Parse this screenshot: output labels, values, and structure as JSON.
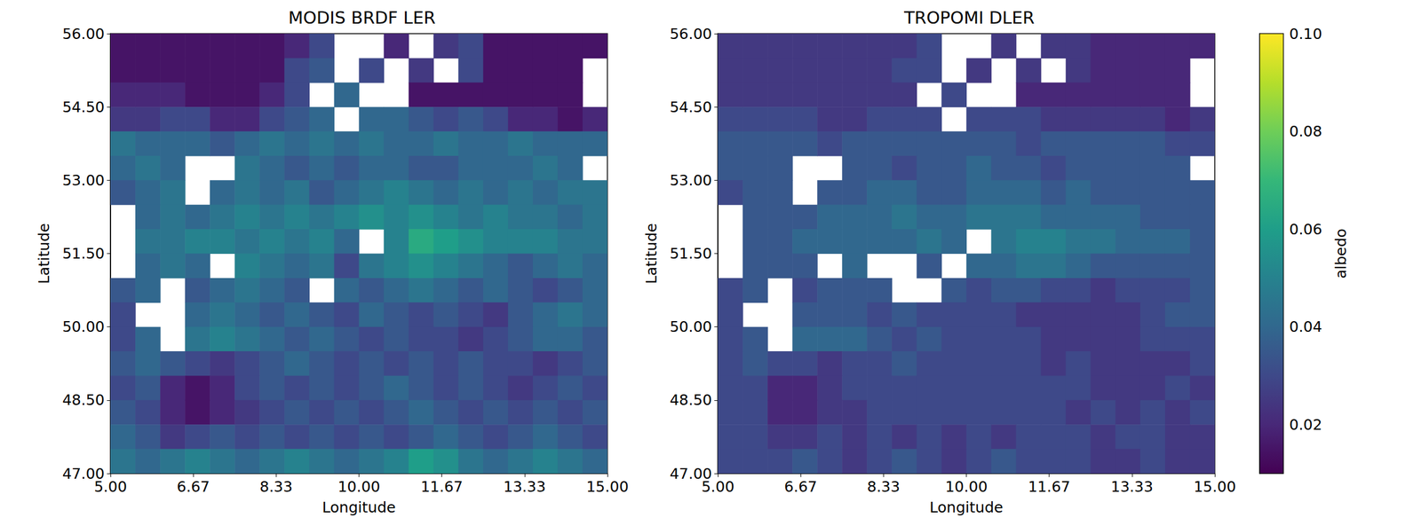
{
  "chart_data": {
    "type": "heatmap",
    "x": [
      5.25,
      5.75,
      6.25,
      6.75,
      7.25,
      7.75,
      8.25,
      8.75,
      9.25,
      9.75,
      10.25,
      10.75,
      11.25,
      11.75,
      12.25,
      12.75,
      13.25,
      13.75,
      14.25,
      14.75
    ],
    "y": [
      55.75,
      55.25,
      54.75,
      54.25,
      53.75,
      53.25,
      52.75,
      52.25,
      51.75,
      51.25,
      50.75,
      50.25,
      49.75,
      49.25,
      48.75,
      48.25,
      47.75,
      47.25
    ],
    "color_range": [
      0.01,
      0.1
    ],
    "colorbar_ticks": [
      0.02,
      0.04,
      0.06,
      0.08,
      {
        "value": 0.1,
        "label": "0.10"
      }
    ],
    "colorbar_label": "albedo",
    "panels": [
      {
        "title": "MODIS BRDF LER",
        "xlabel": "Longitude",
        "ylabel": "Latitude",
        "xlim": [
          5,
          15
        ],
        "ylim": [
          47,
          56
        ],
        "xticks": [
          {
            "value": 5,
            "label": "5.00"
          },
          {
            "value": 6.667,
            "label": "6.67"
          },
          {
            "value": 8.333,
            "label": "8.33"
          },
          {
            "value": 10,
            "label": "10.00"
          },
          {
            "value": 11.667,
            "label": "11.67"
          },
          {
            "value": 13.333,
            "label": "13.33"
          },
          {
            "value": 15,
            "label": "15.00"
          }
        ],
        "yticks": [
          {
            "value": 47,
            "label": "47.00"
          },
          {
            "value": 48.5,
            "label": "48.50"
          },
          {
            "value": 50,
            "label": "50.00"
          },
          {
            "value": 51.5,
            "label": "51.50"
          },
          {
            "value": 53,
            "label": "53.00"
          },
          {
            "value": 54.5,
            "label": "54.50"
          },
          {
            "value": 56,
            "label": "56.00"
          }
        ],
        "cells": [
          [
            0.015,
            0.015,
            0.015,
            0.015,
            0.015,
            0.015,
            0.015,
            0.02,
            0.03,
            null,
            null,
            0.02,
            null,
            0.025,
            0.03,
            0.015,
            0.015,
            0.015,
            0.015,
            0.015
          ],
          [
            0.015,
            0.015,
            0.015,
            0.015,
            0.015,
            0.015,
            0.015,
            0.03,
            0.035,
            null,
            0.03,
            null,
            0.025,
            null,
            0.03,
            0.015,
            0.015,
            0.015,
            0.015,
            null
          ],
          [
            0.02,
            0.02,
            0.02,
            0.015,
            0.015,
            0.015,
            0.02,
            0.03,
            null,
            0.04,
            null,
            null,
            0.015,
            0.015,
            0.015,
            0.015,
            0.015,
            0.015,
            0.015,
            null
          ],
          [
            0.025,
            0.025,
            0.03,
            0.03,
            0.02,
            0.02,
            0.03,
            0.035,
            0.04,
            null,
            0.04,
            0.04,
            0.035,
            0.03,
            0.035,
            0.03,
            0.02,
            0.02,
            0.015,
            0.02
          ],
          [
            0.045,
            0.04,
            0.04,
            0.04,
            0.035,
            0.04,
            0.045,
            0.04,
            0.045,
            0.04,
            0.045,
            0.04,
            0.04,
            0.045,
            0.04,
            0.04,
            0.045,
            0.04,
            0.04,
            0.04
          ],
          [
            0.04,
            0.045,
            0.04,
            null,
            null,
            0.045,
            0.04,
            0.035,
            0.04,
            0.035,
            0.04,
            0.04,
            0.035,
            0.035,
            0.04,
            0.04,
            0.04,
            0.045,
            0.04,
            null
          ],
          [
            0.035,
            0.04,
            0.045,
            null,
            0.04,
            0.045,
            0.04,
            0.045,
            0.035,
            0.04,
            0.045,
            0.05,
            0.045,
            0.04,
            0.045,
            0.04,
            0.045,
            0.04,
            0.045,
            0.045
          ],
          [
            null,
            0.04,
            0.045,
            0.04,
            0.045,
            0.05,
            0.045,
            0.05,
            0.045,
            0.05,
            0.055,
            0.05,
            0.055,
            0.05,
            0.045,
            0.05,
            0.045,
            0.045,
            0.04,
            0.045
          ],
          [
            null,
            0.045,
            0.045,
            0.05,
            0.05,
            0.045,
            0.05,
            0.045,
            0.05,
            0.04,
            null,
            0.05,
            0.065,
            0.06,
            0.055,
            0.05,
            0.05,
            0.05,
            0.045,
            0.045
          ],
          [
            null,
            0.04,
            0.045,
            0.04,
            null,
            0.05,
            0.045,
            0.04,
            0.045,
            0.03,
            0.045,
            0.05,
            0.055,
            0.05,
            0.045,
            0.04,
            0.035,
            0.04,
            0.045,
            0.04
          ],
          [
            0.035,
            0.04,
            null,
            0.035,
            0.04,
            0.045,
            0.04,
            0.035,
            null,
            0.04,
            0.035,
            0.04,
            0.045,
            0.04,
            0.035,
            0.04,
            0.035,
            0.03,
            0.035,
            0.04
          ],
          [
            0.03,
            null,
            null,
            0.04,
            0.045,
            0.04,
            0.035,
            0.04,
            0.035,
            0.03,
            0.04,
            0.035,
            0.03,
            0.035,
            0.03,
            0.025,
            0.035,
            0.04,
            0.045,
            0.04
          ],
          [
            0.03,
            0.04,
            null,
            0.045,
            0.05,
            0.045,
            0.04,
            0.035,
            0.04,
            0.035,
            0.03,
            0.035,
            0.03,
            0.03,
            0.025,
            0.03,
            0.035,
            0.04,
            0.04,
            0.035
          ],
          [
            0.035,
            0.04,
            0.035,
            0.03,
            0.025,
            0.03,
            0.035,
            0.04,
            0.035,
            0.03,
            0.035,
            0.03,
            0.035,
            0.03,
            0.035,
            0.03,
            0.03,
            0.025,
            0.03,
            0.035
          ],
          [
            0.03,
            0.035,
            0.02,
            0.015,
            0.02,
            0.03,
            0.035,
            0.03,
            0.035,
            0.03,
            0.035,
            0.04,
            0.035,
            0.03,
            0.035,
            0.03,
            0.025,
            0.03,
            0.035,
            0.03
          ],
          [
            0.035,
            0.03,
            0.02,
            0.015,
            0.02,
            0.025,
            0.03,
            0.035,
            0.03,
            0.035,
            0.03,
            0.035,
            0.04,
            0.035,
            0.03,
            0.035,
            0.03,
            0.035,
            0.03,
            0.035
          ],
          [
            0.04,
            0.035,
            0.025,
            0.03,
            0.035,
            0.03,
            0.035,
            0.03,
            0.035,
            0.03,
            0.035,
            0.03,
            0.035,
            0.04,
            0.035,
            0.03,
            0.035,
            0.04,
            0.035,
            0.03
          ],
          [
            0.045,
            0.04,
            0.045,
            0.05,
            0.045,
            0.04,
            0.045,
            0.05,
            0.045,
            0.04,
            0.045,
            0.05,
            0.06,
            0.055,
            0.045,
            0.04,
            0.045,
            0.05,
            0.045,
            0.04
          ]
        ]
      },
      {
        "title": "TROPOMI DLER",
        "xlabel": "Longitude",
        "ylabel": "Latitude",
        "xlim": [
          5,
          15
        ],
        "ylim": [
          47,
          56
        ],
        "xticks": [
          {
            "value": 5,
            "label": "5.00"
          },
          {
            "value": 6.667,
            "label": "6.67"
          },
          {
            "value": 8.333,
            "label": "8.33"
          },
          {
            "value": 10,
            "label": "10.00"
          },
          {
            "value": 11.667,
            "label": "11.67"
          },
          {
            "value": 13.333,
            "label": "13.33"
          },
          {
            "value": 15,
            "label": "15.00"
          }
        ],
        "yticks": [
          {
            "value": 47,
            "label": "47.00"
          },
          {
            "value": 48.5,
            "label": "48.50"
          },
          {
            "value": 50,
            "label": "50.00"
          },
          {
            "value": 51.5,
            "label": "51.50"
          },
          {
            "value": 53,
            "label": "53.00"
          },
          {
            "value": 54.5,
            "label": "54.50"
          },
          {
            "value": 56,
            "label": "56.00"
          }
        ],
        "cells": [
          [
            0.025,
            0.025,
            0.025,
            0.025,
            0.025,
            0.025,
            0.025,
            0.025,
            0.03,
            null,
            null,
            0.025,
            null,
            0.025,
            0.025,
            0.02,
            0.02,
            0.02,
            0.02,
            0.02
          ],
          [
            0.025,
            0.025,
            0.025,
            0.025,
            0.025,
            0.025,
            0.025,
            0.03,
            0.03,
            null,
            0.025,
            null,
            0.025,
            null,
            0.025,
            0.02,
            0.02,
            0.02,
            0.02,
            null
          ],
          [
            0.025,
            0.025,
            0.025,
            0.025,
            0.025,
            0.025,
            0.025,
            0.025,
            null,
            0.03,
            null,
            null,
            0.02,
            0.02,
            0.02,
            0.02,
            0.02,
            0.02,
            0.02,
            null
          ],
          [
            0.03,
            0.03,
            0.03,
            0.03,
            0.025,
            0.025,
            0.03,
            0.03,
            0.03,
            null,
            0.03,
            0.03,
            0.03,
            0.025,
            0.025,
            0.025,
            0.025,
            0.025,
            0.02,
            0.025
          ],
          [
            0.035,
            0.035,
            0.035,
            0.035,
            0.03,
            0.035,
            0.035,
            0.035,
            0.035,
            0.035,
            0.035,
            0.035,
            0.03,
            0.035,
            0.035,
            0.035,
            0.035,
            0.035,
            0.03,
            0.03
          ],
          [
            0.035,
            0.035,
            0.035,
            null,
            null,
            0.035,
            0.035,
            0.03,
            0.035,
            0.035,
            0.04,
            0.035,
            0.035,
            0.03,
            0.035,
            0.035,
            0.035,
            0.035,
            0.035,
            null
          ],
          [
            0.03,
            0.035,
            0.035,
            null,
            0.035,
            0.035,
            0.04,
            0.04,
            0.035,
            0.035,
            0.04,
            0.04,
            0.04,
            0.035,
            0.04,
            0.035,
            0.035,
            0.035,
            0.035,
            0.035
          ],
          [
            null,
            0.035,
            0.035,
            0.035,
            0.04,
            0.04,
            0.04,
            0.045,
            0.04,
            0.04,
            0.045,
            0.045,
            0.045,
            0.04,
            0.04,
            0.04,
            0.04,
            0.035,
            0.035,
            0.035
          ],
          [
            null,
            0.035,
            0.035,
            0.04,
            0.04,
            0.04,
            0.04,
            0.04,
            0.045,
            0.04,
            null,
            0.045,
            0.05,
            0.05,
            0.045,
            0.045,
            0.04,
            0.04,
            0.04,
            0.035
          ],
          [
            null,
            0.035,
            0.035,
            0.035,
            null,
            0.04,
            null,
            null,
            0.035,
            null,
            0.04,
            0.04,
            0.045,
            0.045,
            0.04,
            0.035,
            0.035,
            0.035,
            0.035,
            0.035
          ],
          [
            0.03,
            0.035,
            null,
            0.03,
            0.035,
            0.035,
            0.035,
            null,
            null,
            0.035,
            0.03,
            0.035,
            0.035,
            0.03,
            0.03,
            0.025,
            0.03,
            0.03,
            0.03,
            0.035
          ],
          [
            0.03,
            null,
            null,
            0.035,
            0.035,
            0.035,
            0.03,
            0.035,
            0.03,
            0.03,
            0.03,
            0.03,
            0.025,
            0.025,
            0.025,
            0.025,
            0.025,
            0.03,
            0.035,
            0.035
          ],
          [
            0.03,
            0.035,
            null,
            0.04,
            0.04,
            0.04,
            0.035,
            0.03,
            0.035,
            0.03,
            0.03,
            0.03,
            0.03,
            0.025,
            0.025,
            0.025,
            0.025,
            0.03,
            0.03,
            0.03
          ],
          [
            0.03,
            0.035,
            0.03,
            0.03,
            0.025,
            0.03,
            0.03,
            0.035,
            0.03,
            0.03,
            0.03,
            0.03,
            0.03,
            0.025,
            0.03,
            0.025,
            0.025,
            0.025,
            0.025,
            0.03
          ],
          [
            0.03,
            0.03,
            0.02,
            0.02,
            0.025,
            0.03,
            0.03,
            0.03,
            0.03,
            0.03,
            0.03,
            0.03,
            0.03,
            0.03,
            0.03,
            0.025,
            0.025,
            0.025,
            0.03,
            0.025
          ],
          [
            0.03,
            0.03,
            0.02,
            0.02,
            0.025,
            0.025,
            0.03,
            0.03,
            0.03,
            0.03,
            0.03,
            0.03,
            0.03,
            0.03,
            0.025,
            0.03,
            0.025,
            0.03,
            0.025,
            0.03
          ],
          [
            0.03,
            0.03,
            0.025,
            0.025,
            0.03,
            0.025,
            0.03,
            0.025,
            0.03,
            0.025,
            0.03,
            0.025,
            0.03,
            0.03,
            0.03,
            0.025,
            0.03,
            0.03,
            0.025,
            0.025
          ],
          [
            0.03,
            0.03,
            0.03,
            0.035,
            0.03,
            0.025,
            0.03,
            0.035,
            0.03,
            0.025,
            0.03,
            0.035,
            0.03,
            0.03,
            0.03,
            0.025,
            0.025,
            0.03,
            0.025,
            0.025
          ]
        ]
      }
    ]
  }
}
